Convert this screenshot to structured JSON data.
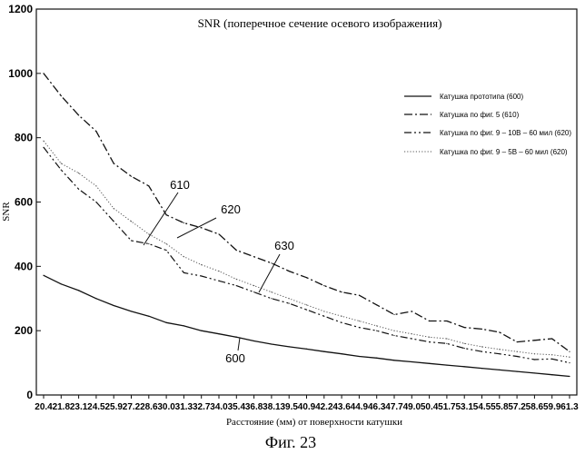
{
  "chart_data": {
    "type": "line",
    "title": "SNR (поперечное сечение осевого изображения)",
    "xlabel": "Расстояние (мм) от поверхности катушки",
    "ylabel": "SNR",
    "ylim": [
      0,
      1200
    ],
    "yticks": [
      0,
      200,
      400,
      600,
      800,
      1000,
      1200
    ],
    "x": [
      "20.4",
      "21.8",
      "23.1",
      "24.5",
      "25.9",
      "27.2",
      "28.6",
      "30.0",
      "31.3",
      "32.7",
      "34.0",
      "35.4",
      "36.8",
      "38.1",
      "39.5",
      "40.9",
      "42.2",
      "43.6",
      "44.9",
      "46.3",
      "47.7",
      "49.0",
      "50.4",
      "51.7",
      "53.1",
      "54.5",
      "55.8",
      "57.2",
      "58.6",
      "59.9",
      "61.3"
    ],
    "legend_position": "right",
    "series": [
      {
        "name": "Катушка прототипа (600)",
        "style": "solid",
        "color": "#111111",
        "values": [
          372,
          345,
          325,
          300,
          278,
          260,
          245,
          225,
          215,
          200,
          190,
          180,
          168,
          158,
          150,
          143,
          135,
          128,
          120,
          115,
          108,
          103,
          98,
          93,
          88,
          83,
          78,
          73,
          68,
          63,
          58
        ]
      },
      {
        "name": "Катушка по фиг. 5 (610)",
        "style": "dashdot",
        "color": "#111111",
        "values": [
          1000,
          930,
          870,
          820,
          720,
          680,
          650,
          560,
          535,
          520,
          500,
          450,
          430,
          410,
          385,
          365,
          340,
          320,
          310,
          280,
          250,
          260,
          230,
          230,
          210,
          205,
          195,
          165,
          170,
          175,
          135
        ]
      },
      {
        "name": "Катушка по фиг. 9 – 10В – 60 мил (620)",
        "style": "dashdotdot",
        "color": "#111111",
        "values": [
          770,
          700,
          640,
          600,
          540,
          480,
          470,
          450,
          380,
          370,
          355,
          340,
          320,
          300,
          285,
          265,
          245,
          225,
          210,
          200,
          185,
          175,
          165,
          160,
          145,
          135,
          128,
          120,
          110,
          112,
          100
        ]
      },
      {
        "name": "Катушка по фиг. 9 – 5В – 60 мил (620)",
        "style": "dotted",
        "color": "#555555",
        "values": [
          790,
          720,
          690,
          650,
          580,
          540,
          500,
          470,
          430,
          405,
          385,
          360,
          340,
          320,
          300,
          280,
          260,
          245,
          230,
          215,
          200,
          190,
          180,
          175,
          160,
          150,
          142,
          135,
          128,
          125,
          118
        ]
      }
    ],
    "annotations": [
      {
        "text": "610",
        "x": "30.0",
        "y": 660
      },
      {
        "text": "620",
        "x": "33.5",
        "y": 590
      },
      {
        "text": "630",
        "x": "40.5",
        "y": 430
      },
      {
        "text": "600",
        "x": "36.5",
        "y": 120
      }
    ]
  },
  "figure": {
    "caption": "Фиг. 23"
  }
}
